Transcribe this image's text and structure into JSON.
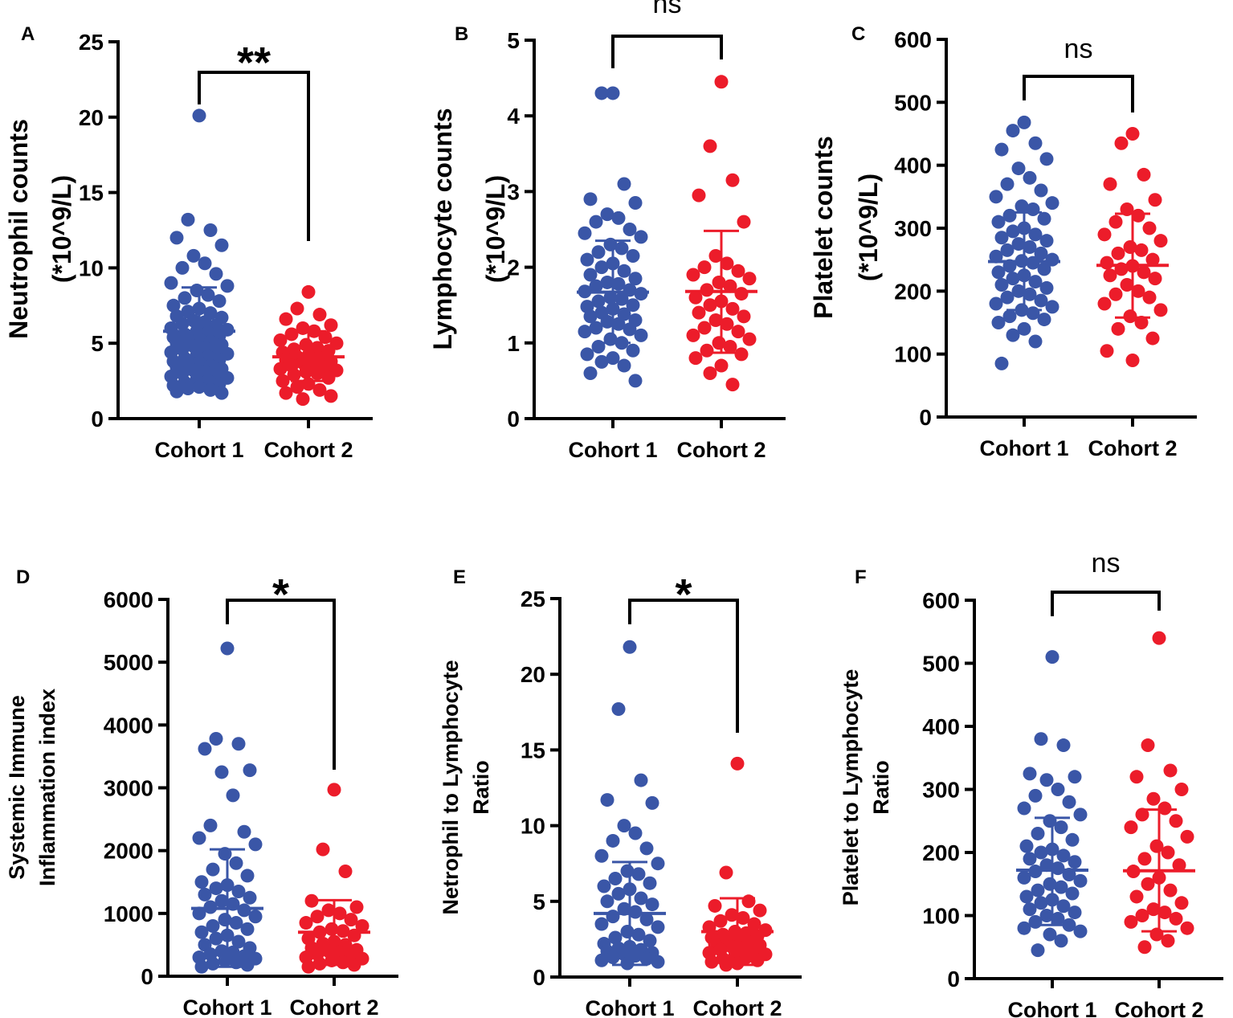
{
  "colors": {
    "cohort1": "#3a56a7",
    "cohort2": "#ec1c2a"
  },
  "chart_data": [
    {
      "type": "scatter",
      "panel": "A",
      "ylabel": [
        "Neutrophil counts",
        "(*10^9/L)"
      ],
      "categories": [
        "Cohort 1",
        "Cohort 2"
      ],
      "ylim": [
        0,
        25
      ],
      "yticks": [
        "0",
        "5",
        "10",
        "15",
        "20",
        "25"
      ],
      "significance": "**",
      "series": [
        {
          "name": "Cohort 1",
          "mean": 5.8,
          "sd_low": 3.0,
          "sd_high": 8.7,
          "values": [
            20.1,
            13.2,
            12.5,
            12.0,
            11.5,
            10.8,
            10.3,
            10.0,
            9.6,
            9.0,
            8.8,
            8.5,
            8.2,
            8.0,
            7.8,
            7.5,
            7.3,
            7.1,
            7.0,
            6.8,
            6.7,
            6.5,
            6.4,
            6.3,
            6.2,
            6.0,
            5.9,
            5.8,
            5.7,
            5.6,
            5.5,
            5.4,
            5.3,
            5.2,
            5.1,
            5.0,
            4.9,
            4.8,
            4.7,
            4.6,
            4.5,
            4.4,
            4.3,
            4.2,
            4.1,
            4.0,
            3.9,
            3.8,
            3.7,
            3.6,
            3.5,
            3.4,
            3.3,
            3.2,
            3.1,
            3.0,
            2.9,
            2.8,
            2.7,
            2.6,
            2.5,
            2.4,
            2.3,
            2.2,
            2.1,
            2.0,
            1.9,
            1.8,
            1.7
          ]
        },
        {
          "name": "Cohort 2",
          "mean": 4.1,
          "sd_low": 2.5,
          "sd_high": 5.8,
          "values": [
            8.4,
            7.3,
            6.9,
            6.6,
            6.2,
            6.0,
            5.8,
            5.6,
            5.4,
            5.2,
            5.0,
            4.9,
            4.7,
            4.6,
            4.5,
            4.4,
            4.2,
            4.1,
            4.0,
            3.9,
            3.8,
            3.7,
            3.6,
            3.5,
            3.4,
            3.3,
            3.2,
            3.1,
            3.0,
            2.9,
            2.7,
            2.5,
            2.3,
            2.1,
            1.9,
            1.7,
            1.5,
            1.3
          ]
        }
      ]
    },
    {
      "type": "scatter",
      "panel": "B",
      "ylabel": [
        "Lymphocyte counts",
        "(*10^9/L)"
      ],
      "categories": [
        "Cohort 1",
        "Cohort 2"
      ],
      "ylim": [
        0,
        5
      ],
      "yticks": [
        "0",
        "1",
        "2",
        "3",
        "4",
        "5"
      ],
      "significance": "ns",
      "series": [
        {
          "name": "Cohort 1",
          "mean": 1.67,
          "sd_low": 1.0,
          "sd_high": 2.35,
          "values": [
            4.3,
            4.3,
            3.1,
            2.9,
            2.85,
            2.7,
            2.65,
            2.6,
            2.5,
            2.45,
            2.4,
            2.3,
            2.25,
            2.2,
            2.15,
            2.1,
            2.05,
            2.0,
            1.95,
            1.9,
            1.85,
            1.8,
            1.78,
            1.75,
            1.7,
            1.68,
            1.65,
            1.6,
            1.58,
            1.55,
            1.5,
            1.48,
            1.45,
            1.4,
            1.38,
            1.35,
            1.3,
            1.28,
            1.25,
            1.2,
            1.18,
            1.15,
            1.1,
            1.05,
            1.0,
            0.95,
            0.9,
            0.85,
            0.8,
            0.75,
            0.7,
            0.6,
            0.5
          ]
        },
        {
          "name": "Cohort 2",
          "mean": 1.68,
          "sd_low": 0.87,
          "sd_high": 2.48,
          "values": [
            4.45,
            3.6,
            3.15,
            2.95,
            2.6,
            2.15,
            2.05,
            2.0,
            1.95,
            1.9,
            1.85,
            1.8,
            1.75,
            1.7,
            1.65,
            1.6,
            1.55,
            1.5,
            1.45,
            1.4,
            1.35,
            1.3,
            1.25,
            1.2,
            1.15,
            1.1,
            1.05,
            1.0,
            0.95,
            0.9,
            0.85,
            0.8,
            0.7,
            0.6,
            0.45
          ]
        }
      ]
    },
    {
      "type": "scatter",
      "panel": "C",
      "ylabel": [
        "Platelet counts",
        "(*10^9/L)"
      ],
      "categories": [
        "Cohort 1",
        "Cohort 2"
      ],
      "ylim": [
        0,
        600
      ],
      "yticks": [
        "0",
        "100",
        "200",
        "300",
        "400",
        "500",
        "600"
      ],
      "significance": "ns",
      "series": [
        {
          "name": "Cohort 1",
          "mean": 247,
          "sd_low": 170,
          "sd_high": 325,
          "values": [
            468,
            455,
            435,
            425,
            410,
            395,
            380,
            370,
            360,
            350,
            340,
            335,
            330,
            320,
            315,
            310,
            300,
            295,
            290,
            285,
            280,
            275,
            270,
            265,
            260,
            255,
            250,
            248,
            245,
            240,
            235,
            230,
            225,
            220,
            215,
            210,
            205,
            200,
            195,
            190,
            185,
            180,
            175,
            170,
            165,
            160,
            155,
            150,
            140,
            130,
            120,
            85
          ]
        },
        {
          "name": "Cohort 2",
          "mean": 241,
          "sd_low": 158,
          "sd_high": 323,
          "values": [
            450,
            435,
            385,
            370,
            345,
            330,
            320,
            310,
            300,
            290,
            280,
            270,
            265,
            260,
            250,
            245,
            240,
            235,
            230,
            225,
            220,
            210,
            200,
            195,
            190,
            180,
            170,
            160,
            150,
            140,
            125,
            105,
            90
          ]
        }
      ]
    },
    {
      "type": "scatter",
      "panel": "D",
      "ylabel": [
        "Systemic Immune",
        "Inflammation index"
      ],
      "categories": [
        "Cohort 1",
        "Cohort 2"
      ],
      "ylim": [
        0,
        6000
      ],
      "yticks": [
        "0",
        "1000",
        "2000",
        "3000",
        "4000",
        "5000",
        "6000"
      ],
      "significance": "*",
      "series": [
        {
          "name": "Cohort 1",
          "mean": 1080,
          "sd_low": 150,
          "sd_high": 2020,
          "values": [
            5220,
            3780,
            3700,
            3620,
            3280,
            3250,
            2880,
            2400,
            2300,
            2200,
            2100,
            1950,
            1800,
            1700,
            1600,
            1500,
            1450,
            1400,
            1350,
            1300,
            1250,
            1200,
            1150,
            1100,
            1050,
            1000,
            950,
            900,
            850,
            800,
            750,
            700,
            650,
            600,
            550,
            500,
            450,
            400,
            380,
            350,
            320,
            300,
            280,
            250,
            220,
            200,
            180,
            150
          ]
        },
        {
          "name": "Cohort 2",
          "mean": 700,
          "sd_low": 180,
          "sd_high": 1210,
          "values": [
            2970,
            2020,
            1670,
            1200,
            1100,
            1050,
            1000,
            950,
            900,
            850,
            800,
            750,
            720,
            700,
            650,
            600,
            550,
            520,
            500,
            450,
            420,
            400,
            380,
            350,
            320,
            300,
            280,
            250,
            220,
            200,
            180,
            150
          ]
        }
      ]
    },
    {
      "type": "scatter",
      "panel": "E",
      "ylabel": [
        "Netrophil to Lymphocyte",
        "Ratio"
      ],
      "categories": [
        "Cohort 1",
        "Cohort 2"
      ],
      "ylim": [
        0,
        25
      ],
      "yticks": [
        "0",
        "5",
        "10",
        "15",
        "20",
        "25"
      ],
      "significance": "*",
      "series": [
        {
          "name": "Cohort 1",
          "mean": 4.2,
          "sd_low": 0.8,
          "sd_high": 7.6,
          "values": [
            21.8,
            17.7,
            13.0,
            11.7,
            11.5,
            10.0,
            9.5,
            9.0,
            8.5,
            8.0,
            7.5,
            7.0,
            6.8,
            6.5,
            6.2,
            6.0,
            5.8,
            5.5,
            5.2,
            5.0,
            4.8,
            4.5,
            4.3,
            4.0,
            3.8,
            3.5,
            3.3,
            3.0,
            2.8,
            2.6,
            2.4,
            2.2,
            2.0,
            1.9,
            1.8,
            1.7,
            1.6,
            1.5,
            1.4,
            1.3,
            1.2,
            1.1,
            1.0,
            0.9
          ]
        },
        {
          "name": "Cohort 2",
          "mean": 3.0,
          "sd_low": 0.8,
          "sd_high": 5.2,
          "values": [
            14.1,
            6.9,
            5.0,
            4.7,
            4.4,
            4.1,
            3.9,
            3.7,
            3.5,
            3.3,
            3.1,
            3.0,
            2.9,
            2.8,
            2.7,
            2.6,
            2.5,
            2.4,
            2.3,
            2.2,
            2.1,
            2.0,
            1.9,
            1.8,
            1.7,
            1.6,
            1.5,
            1.4,
            1.3,
            1.2,
            1.1,
            1.0,
            0.9,
            0.8
          ]
        }
      ]
    },
    {
      "type": "scatter",
      "panel": "F",
      "ylabel": [
        "Platelet to Lymphocyte",
        "Ratio"
      ],
      "categories": [
        "Cohort 1",
        "Cohort 2"
      ],
      "ylim": [
        0,
        600
      ],
      "yticks": [
        "0",
        "100",
        "200",
        "300",
        "400",
        "500",
        "600"
      ],
      "significance": "ns",
      "series": [
        {
          "name": "Cohort 1",
          "mean": 172,
          "sd_low": 85,
          "sd_high": 255,
          "values": [
            510,
            380,
            370,
            325,
            320,
            315,
            300,
            290,
            280,
            270,
            260,
            250,
            240,
            230,
            220,
            210,
            205,
            200,
            195,
            190,
            185,
            180,
            175,
            170,
            165,
            160,
            155,
            150,
            145,
            140,
            135,
            130,
            125,
            120,
            115,
            110,
            105,
            100,
            95,
            90,
            85,
            80,
            75,
            70,
            60,
            45
          ]
        },
        {
          "name": "Cohort 2",
          "mean": 171,
          "sd_low": 75,
          "sd_high": 268,
          "values": [
            540,
            370,
            330,
            320,
            300,
            285,
            270,
            260,
            250,
            240,
            225,
            210,
            200,
            190,
            180,
            170,
            160,
            150,
            140,
            130,
            120,
            110,
            105,
            100,
            95,
            90,
            80,
            70,
            60,
            50
          ]
        }
      ]
    }
  ]
}
